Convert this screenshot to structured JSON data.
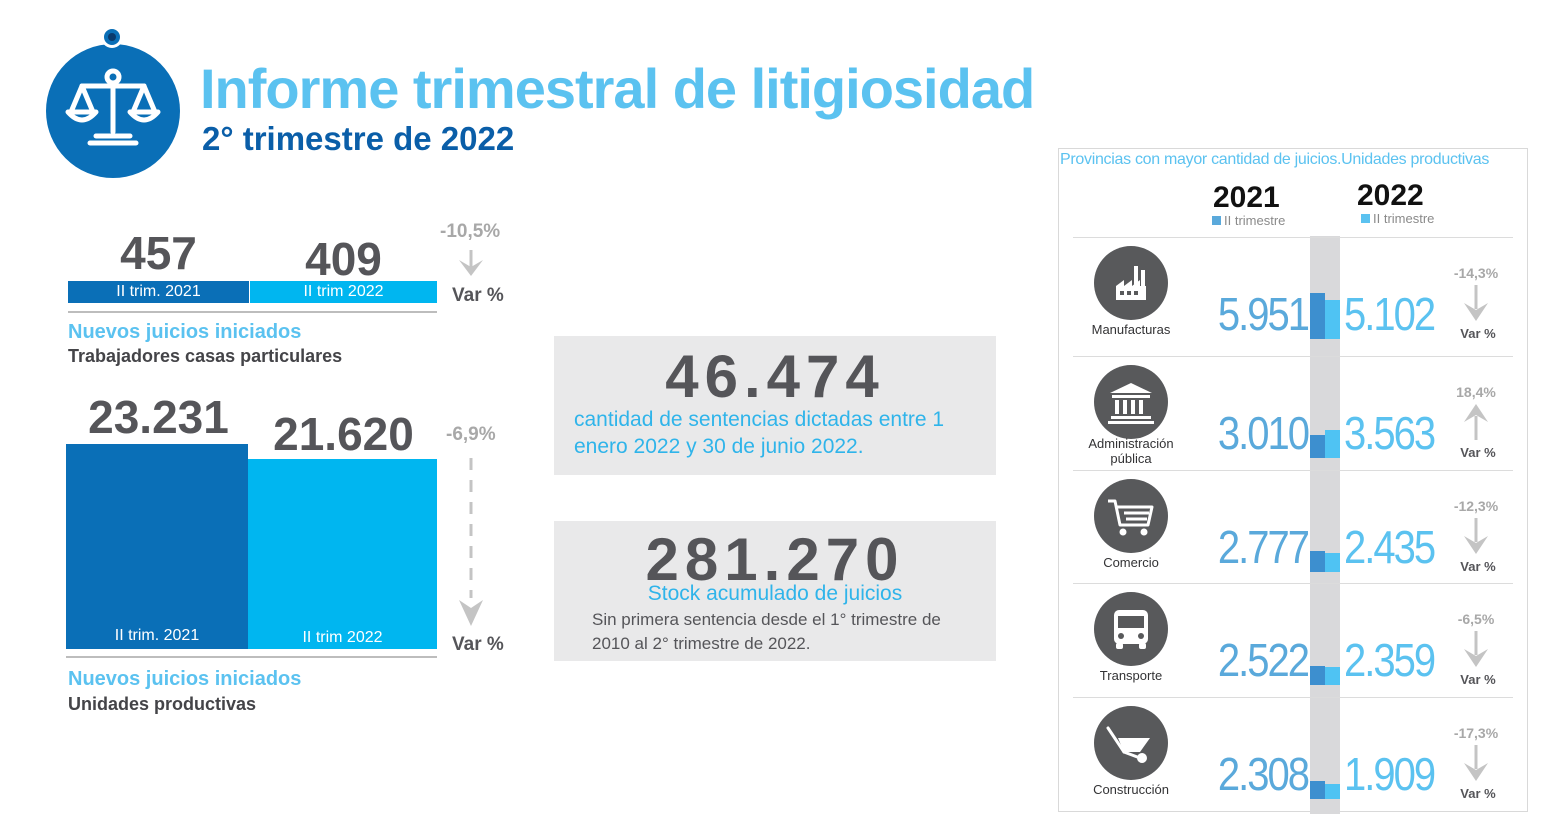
{
  "header": {
    "title": "Informe trimestral de litigiosidad",
    "subtitle": "2° trimestre de 2022",
    "logo_icon": "scales-icon"
  },
  "colors": {
    "dark_blue": "#0a6fb7",
    "light_blue": "#00b6f0",
    "accent": "#5bc2f0",
    "gray_text": "#555559",
    "box_gray": "#e9e9ea"
  },
  "chart_data": [
    {
      "type": "bar",
      "categories": [
        "II trim. 2021",
        "II trim 2022"
      ],
      "values": [
        457,
        409
      ],
      "value_labels": [
        "457",
        "409"
      ],
      "variation": "-10,5%",
      "variation_label": "Var %",
      "title": "Nuevos juicios iniciados",
      "subtitle": "Trabajadores casas particulares"
    },
    {
      "type": "bar",
      "categories": [
        "II trim. 2021",
        "II trim 2022"
      ],
      "values": [
        23231,
        21620
      ],
      "value_labels": [
        "23.231",
        "21.620"
      ],
      "variation": "-6,9%",
      "variation_label": "Var %",
      "title": "Nuevos juicios iniciados",
      "subtitle": "Unidades productivas"
    },
    {
      "type": "bar",
      "title": "Provincias con mayor cantidad de juicios.Unidades productivas",
      "series": [
        {
          "name": "2021",
          "legend": "II trimestre",
          "values": [
            5951,
            3010,
            2777,
            2522,
            2308
          ]
        },
        {
          "name": "2022",
          "legend": "II trimestre",
          "values": [
            5102,
            3563,
            2435,
            2359,
            1909
          ]
        }
      ],
      "rows": [
        {
          "category": "Manufacturas",
          "icon": "factory-icon",
          "v2021": "5.951",
          "v2022": "5.102",
          "variation": "-14,3%",
          "direction": "down",
          "var_label": "Var %"
        },
        {
          "category": "Administración pública",
          "icon": "government-building-icon",
          "v2021": "3.010",
          "v2022": "3.563",
          "variation": "18,4%",
          "direction": "up",
          "var_label": "Var %"
        },
        {
          "category": "Comercio",
          "icon": "shopping-cart-icon",
          "v2021": "2.777",
          "v2022": "2.435",
          "variation": "-12,3%",
          "direction": "down",
          "var_label": "Var %"
        },
        {
          "category": "Transporte",
          "icon": "bus-icon",
          "v2021": "2.522",
          "v2022": "2.359",
          "variation": "-6,5%",
          "direction": "down",
          "var_label": "Var %"
        },
        {
          "category": "Construcción",
          "icon": "wheelbarrow-icon",
          "v2021": "2.308",
          "v2022": "1.909",
          "variation": "-17,3%",
          "direction": "down",
          "var_label": "Var %"
        }
      ]
    }
  ],
  "stats": {
    "sentencias": {
      "value": "46.474",
      "description": "cantidad de sentencias dictadas entre 1 enero 2022 y 30 de junio 2022."
    },
    "stock": {
      "value": "281.270",
      "title": "Stock acumulado de juicios",
      "note": "Sin primera sentencia desde el 1° trimestre de 2010 al  2° trimestre de 2022."
    }
  }
}
